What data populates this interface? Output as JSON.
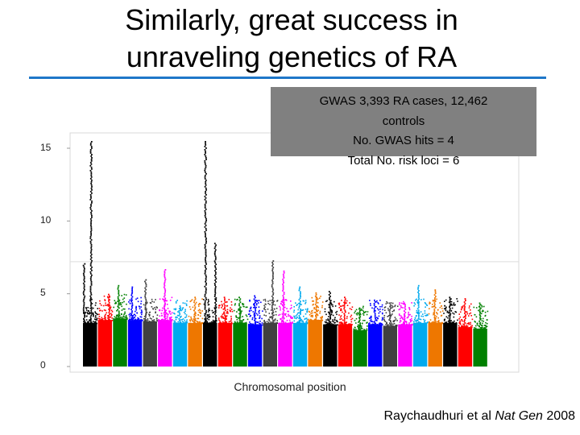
{
  "title_lines": [
    "Similarly, great success in",
    "unraveling genetics of RA"
  ],
  "info_box": {
    "line1": "GWAS 3,393 RA cases, 12,462",
    "line2": "controls",
    "line3": "No. GWAS hits = 4",
    "line4": "Total No. risk loci = 6"
  },
  "citation": {
    "authors": "Raychaudhuri et al ",
    "journal": "Nat Gen",
    "year": " 2008"
  },
  "colors": {
    "accent_rule": "#1f77c9",
    "info_box_bg": "#808080",
    "threshold_line": "#dddddd",
    "chromosome_palette": [
      "#000000",
      "#ff0000",
      "#008000",
      "#0000ff",
      "#404040",
      "#ff00ff",
      "#00aaee",
      "#ee7700"
    ]
  },
  "chart_data": {
    "type": "scatter",
    "subtype": "manhattan",
    "xlabel": "Chromosomal position",
    "ylabel": "",
    "ylim": [
      0,
      15.5
    ],
    "yticks": [
      0,
      5,
      10,
      15
    ],
    "ytick_labels": [
      "0",
      "5",
      "10",
      "15"
    ],
    "threshold": 7.2,
    "grid": false,
    "chromosomes": [
      {
        "chr": 1,
        "base": 3.0,
        "peaks": [
          {
            "pos": 0.6,
            "y": 15.5
          },
          {
            "pos": 0.1,
            "y": 7.1
          }
        ]
      },
      {
        "chr": 2,
        "base": 3.2,
        "peaks": [
          {
            "pos": 0.8,
            "y": 5.0
          }
        ]
      },
      {
        "chr": 3,
        "base": 3.3,
        "peaks": [
          {
            "pos": 0.4,
            "y": 5.6
          }
        ]
      },
      {
        "chr": 4,
        "base": 3.2,
        "peaks": [
          {
            "pos": 0.3,
            "y": 5.5
          }
        ]
      },
      {
        "chr": 5,
        "base": 3.1,
        "peaks": [
          {
            "pos": 0.2,
            "y": 6.0
          }
        ]
      },
      {
        "chr": 6,
        "base": 3.2,
        "peaks": [
          {
            "pos": 0.5,
            "y": 6.7
          }
        ]
      },
      {
        "chr": 7,
        "base": 3.0,
        "peaks": [
          {
            "pos": 0.5,
            "y": 4.2
          }
        ]
      },
      {
        "chr": 8,
        "base": 3.0,
        "peaks": [
          {
            "pos": 0.5,
            "y": 4.8
          }
        ]
      },
      {
        "chr": 9,
        "base": 3.0,
        "peaks": [
          {
            "pos": 0.2,
            "y": 15.5
          },
          {
            "pos": 0.9,
            "y": 8.5
          }
        ]
      },
      {
        "chr": 10,
        "base": 3.0,
        "peaks": [
          {
            "pos": 0.5,
            "y": 4.8
          }
        ]
      },
      {
        "chr": 11,
        "base": 3.0,
        "peaks": [
          {
            "pos": 0.5,
            "y": 4.8
          }
        ]
      },
      {
        "chr": 12,
        "base": 2.9,
        "peaks": [
          {
            "pos": 0.5,
            "y": 4.9
          }
        ]
      },
      {
        "chr": 13,
        "base": 3.0,
        "peaks": [
          {
            "pos": 0.7,
            "y": 7.3
          }
        ]
      },
      {
        "chr": 14,
        "base": 3.0,
        "peaks": [
          {
            "pos": 0.4,
            "y": 6.6
          }
        ]
      },
      {
        "chr": 15,
        "base": 3.0,
        "peaks": [
          {
            "pos": 0.5,
            "y": 5.5
          }
        ]
      },
      {
        "chr": 16,
        "base": 3.2,
        "peaks": [
          {
            "pos": 0.6,
            "y": 5.1
          }
        ]
      },
      {
        "chr": 17,
        "base": 2.9,
        "peaks": [
          {
            "pos": 0.5,
            "y": 5.2
          }
        ]
      },
      {
        "chr": 18,
        "base": 2.9,
        "peaks": [
          {
            "pos": 0.5,
            "y": 4.8
          }
        ]
      },
      {
        "chr": 19,
        "base": 2.5,
        "peaks": [
          {
            "pos": 0.5,
            "y": 4.0
          }
        ]
      },
      {
        "chr": 20,
        "base": 2.9,
        "peaks": [
          {
            "pos": 0.5,
            "y": 4.6
          }
        ]
      },
      {
        "chr": 21,
        "base": 2.8,
        "peaks": [
          {
            "pos": 0.5,
            "y": 4.4
          }
        ]
      },
      {
        "chr": 22,
        "base": 2.9,
        "peaks": [
          {
            "pos": 0.5,
            "y": 4.4
          }
        ]
      },
      {
        "chr": 23,
        "base": 3.0,
        "peaks": [
          {
            "pos": 0.4,
            "y": 5.6
          }
        ]
      },
      {
        "chr": 24,
        "base": 3.0,
        "peaks": [
          {
            "pos": 0.5,
            "y": 5.3
          }
        ]
      },
      {
        "chr": 25,
        "base": 3.0,
        "peaks": [
          {
            "pos": 0.5,
            "y": 4.8
          }
        ]
      },
      {
        "chr": 26,
        "base": 2.7,
        "peaks": [
          {
            "pos": 0.5,
            "y": 4.7
          }
        ]
      },
      {
        "chr": 27,
        "base": 2.6,
        "peaks": [
          {
            "pos": 0.5,
            "y": 4.4
          }
        ]
      }
    ]
  }
}
